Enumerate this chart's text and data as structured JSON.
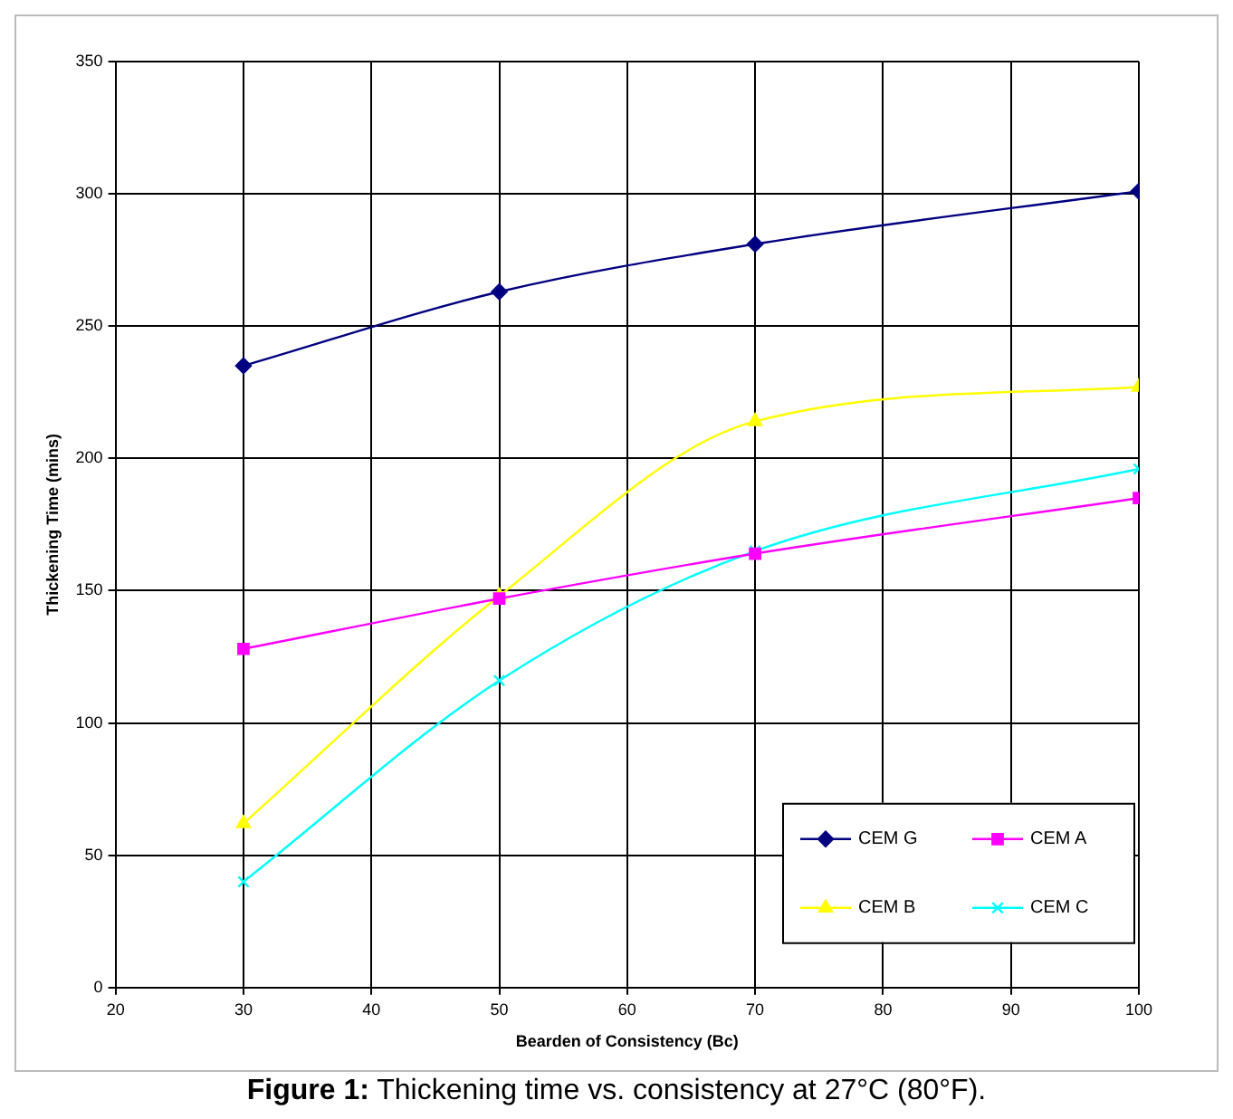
{
  "chart_data": {
    "type": "line",
    "title": "Figure 1: Thickening time vs. consistency at 27°C (80°F).",
    "xlabel": "Bearden of Consistency (Bc)",
    "ylabel": "Thickening Time (mins)",
    "x": [
      30,
      50,
      70,
      100
    ],
    "series": [
      {
        "name": "CEM G",
        "color": "#000080",
        "marker": "diamond",
        "values": [
          235,
          263,
          281,
          301
        ]
      },
      {
        "name": "CEM A",
        "color": "#ff00ff",
        "marker": "square",
        "values": [
          128,
          147,
          164,
          185
        ]
      },
      {
        "name": "CEM B",
        "color": "#ffff00",
        "marker": "triangle",
        "values": [
          62,
          148,
          214,
          227
        ]
      },
      {
        "name": "CEM C",
        "color": "#00ffff",
        "marker": "cross",
        "values": [
          40,
          116,
          165,
          196
        ]
      }
    ],
    "xlim": [
      20,
      100
    ],
    "xticks": [
      20,
      30,
      40,
      50,
      60,
      70,
      80,
      90,
      100
    ],
    "ylim": [
      0,
      350
    ],
    "yticks": [
      0,
      50,
      100,
      150,
      200,
      250,
      300,
      350
    ],
    "grid": true,
    "legend": "bottom right"
  }
}
